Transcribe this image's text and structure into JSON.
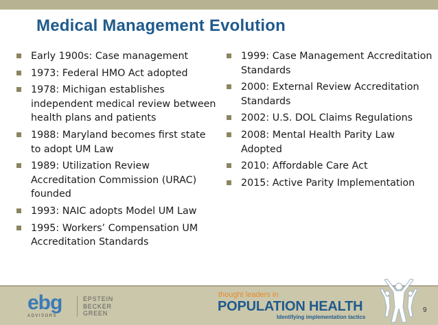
{
  "slide": {
    "title": "Medical Management Evolution",
    "page_number": "9"
  },
  "bullets_left": [
    "Early 1900s: Case management",
    "1973: Federal HMO Act adopted",
    "1978: Michigan establishes independent medical review between health plans and patients",
    "1988: Maryland becomes first state to adopt UM Law",
    "1989: Utilization Review Accreditation Commission (URAC) founded",
    "1993: NAIC adopts Model UM Law",
    "1995: Workers’ Compensation UM Accreditation Standards"
  ],
  "bullets_right": [
    "1999: Case Management Accreditation Standards",
    "2000: External Review Accreditation Standards",
    "2002: U.S. DOL Claims Regulations",
    "2008: Mental Health Parity Law Adopted",
    "2010: Affordable Care Act",
    "2015: Active Parity Implementation"
  ],
  "footer": {
    "logo_letters": "ebg",
    "logo_sub": "ADVISORS",
    "firm_line1": "EPSTEIN",
    "firm_line2": "BECKER",
    "firm_line3": "GREEN",
    "thought_leaders": "thought leaders in",
    "population_health": "POPULATION HEALTH",
    "tagline": "Identifying implementation tactics"
  },
  "colors": {
    "title_blue": "#1f5a8c",
    "accent_orange": "#e58b2a",
    "bar_tan": "#b7b292",
    "footer_tan": "#cbc7ab"
  }
}
